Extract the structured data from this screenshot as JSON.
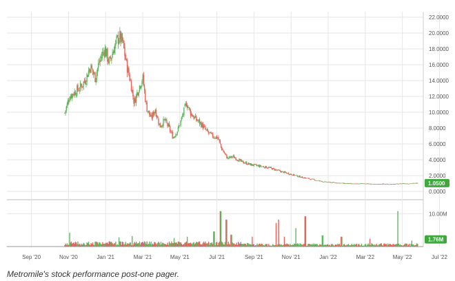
{
  "chart_data": {
    "type": "candlestick",
    "price_panel": {
      "y_ticks": [
        "22.0000",
        "20.0000",
        "18.0000",
        "16.0000",
        "14.0000",
        "12.0000",
        "10.0000",
        "8.0000",
        "6.0000",
        "4.0000",
        "2.0000",
        "0.0000"
      ],
      "ylim": [
        0,
        22
      ],
      "last_price_label": "1.0500",
      "last_price": 1.05,
      "grid": true
    },
    "volume_panel": {
      "y_ticks": [
        "10.00M"
      ],
      "ylim": [
        0,
        13
      ],
      "last_volume_label": "1.76M",
      "last_volume": 1.76
    },
    "x_ticks": [
      "Sep '20",
      "Nov '20",
      "Jan '21",
      "Mar '21",
      "May '21",
      "Jul '21",
      "Sep '21",
      "Nov '21",
      "Jan '22",
      "Mar '22",
      "May '22",
      "Jul '22"
    ],
    "colors": {
      "up": "#5cb85c",
      "down": "#e8625a",
      "badge": "#3eaa3e",
      "grid": "#e6e6e6"
    },
    "price_path": [
      {
        "t": 2.75,
        "p": 9.9
      },
      {
        "t": 3.0,
        "p": 12.0
      },
      {
        "t": 3.3,
        "p": 12.6
      },
      {
        "t": 3.6,
        "p": 13.2
      },
      {
        "t": 3.85,
        "p": 14.2
      },
      {
        "t": 4.1,
        "p": 15.8
      },
      {
        "t": 4.35,
        "p": 14.4
      },
      {
        "t": 4.6,
        "p": 16.6
      },
      {
        "t": 4.85,
        "p": 18.0
      },
      {
        "t": 5.1,
        "p": 16.2
      },
      {
        "t": 5.35,
        "p": 18.2
      },
      {
        "t": 5.6,
        "p": 19.6
      },
      {
        "t": 5.8,
        "p": 18.8
      },
      {
        "t": 6.0,
        "p": 16.0
      },
      {
        "t": 6.2,
        "p": 14.0
      },
      {
        "t": 6.4,
        "p": 11.2
      },
      {
        "t": 6.6,
        "p": 12.8
      },
      {
        "t": 6.85,
        "p": 14.4
      },
      {
        "t": 7.05,
        "p": 10.6
      },
      {
        "t": 7.3,
        "p": 9.2
      },
      {
        "t": 7.5,
        "p": 10.4
      },
      {
        "t": 7.75,
        "p": 8.2
      },
      {
        "t": 8.0,
        "p": 9.0
      },
      {
        "t": 8.2,
        "p": 8.2
      },
      {
        "t": 8.45,
        "p": 6.8
      },
      {
        "t": 8.7,
        "p": 7.8
      },
      {
        "t": 8.95,
        "p": 9.6
      },
      {
        "t": 9.15,
        "p": 11.2
      },
      {
        "t": 9.35,
        "p": 10.0
      },
      {
        "t": 9.6,
        "p": 9.2
      },
      {
        "t": 9.9,
        "p": 8.6
      },
      {
        "t": 10.2,
        "p": 7.6
      },
      {
        "t": 10.5,
        "p": 7.0
      },
      {
        "t": 10.8,
        "p": 6.8
      },
      {
        "t": 11.0,
        "p": 5.4
      },
      {
        "t": 11.3,
        "p": 4.2
      },
      {
        "t": 11.6,
        "p": 4.4
      },
      {
        "t": 12.0,
        "p": 3.8
      },
      {
        "t": 12.5,
        "p": 3.4
      },
      {
        "t": 13.0,
        "p": 3.2
      },
      {
        "t": 13.5,
        "p": 3.0
      },
      {
        "t": 14.0,
        "p": 2.6
      },
      {
        "t": 14.6,
        "p": 2.2
      },
      {
        "t": 15.2,
        "p": 1.8
      },
      {
        "t": 15.8,
        "p": 1.5
      },
      {
        "t": 16.4,
        "p": 1.2
      },
      {
        "t": 17.0,
        "p": 1.1
      },
      {
        "t": 17.5,
        "p": 1.0
      },
      {
        "t": 18.0,
        "p": 0.95
      },
      {
        "t": 18.5,
        "p": 1.0
      },
      {
        "t": 19.0,
        "p": 0.9
      },
      {
        "t": 19.5,
        "p": 0.95
      },
      {
        "t": 20.0,
        "p": 0.9
      },
      {
        "t": 20.5,
        "p": 1.0
      },
      {
        "t": 21.0,
        "p": 1.0
      },
      {
        "t": 21.3,
        "p": 1.05
      }
    ],
    "volume_spikes": [
      {
        "t": 3.0,
        "v": 4.2
      },
      {
        "t": 5.6,
        "v": 2.8
      },
      {
        "t": 6.3,
        "v": 3.2
      },
      {
        "t": 8.5,
        "v": 2.6
      },
      {
        "t": 9.2,
        "v": 3.0
      },
      {
        "t": 10.6,
        "v": 4.6
      },
      {
        "t": 10.95,
        "v": 10.8
      },
      {
        "t": 11.25,
        "v": 8.2
      },
      {
        "t": 11.5,
        "v": 3.6
      },
      {
        "t": 12.6,
        "v": 3.0
      },
      {
        "t": 13.85,
        "v": 7.2
      },
      {
        "t": 14.0,
        "v": 8.2
      },
      {
        "t": 14.3,
        "v": 3.0
      },
      {
        "t": 14.9,
        "v": 5.6
      },
      {
        "t": 15.4,
        "v": 9.2
      },
      {
        "t": 16.3,
        "v": 3.4
      },
      {
        "t": 17.3,
        "v": 3.0
      },
      {
        "t": 18.8,
        "v": 2.4
      },
      {
        "t": 20.25,
        "v": 10.8
      },
      {
        "t": 21.0,
        "v": 1.8
      }
    ]
  },
  "caption": "Metromile's stock performance post-one pager."
}
